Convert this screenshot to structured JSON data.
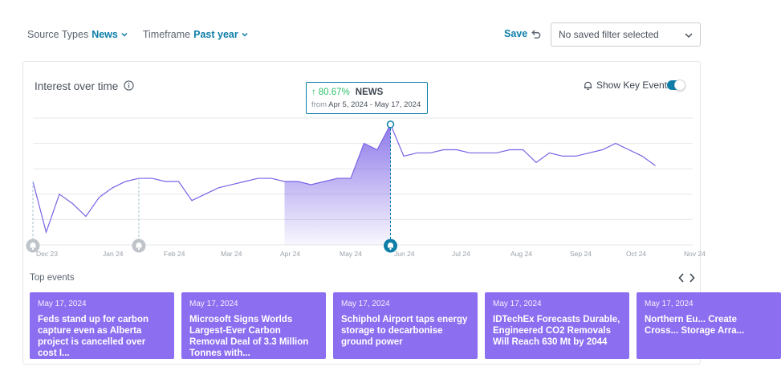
{
  "filters": {
    "source_types": {
      "label": "Source Types",
      "value": "News"
    },
    "timeframe": {
      "label": "Timeframe",
      "value": "Past year"
    }
  },
  "toolbar": {
    "save_label": "Save"
  },
  "saved_filter": {
    "value": "No saved filter selected"
  },
  "card": {
    "title": "Interest over time",
    "key_events_label": "Show Key Events",
    "key_events_on": true
  },
  "tooltip": {
    "change": "80.67%",
    "source": "NEWS",
    "from_label": "from",
    "dates": "Apr 5, 2024 - May 17, 2024"
  },
  "top_events_label": "Top events",
  "events": [
    {
      "date": "May 17, 2024",
      "title": "Feds stand up for carbon capture even as Alberta project is cancelled over cost I..."
    },
    {
      "date": "May 17, 2024",
      "title": "Microsoft Signs Worlds Largest-Ever Carbon Removal Deal of 3.3 Million Tonnes with..."
    },
    {
      "date": "May 17, 2024",
      "title": "Schiphol Airport taps energy storage to decarbonise ground power"
    },
    {
      "date": "May 17, 2024",
      "title": "IDTechEx Forecasts Durable, Engineered CO2 Removals Will Reach 630 Mt by 2044"
    },
    {
      "date": "May 17, 2024",
      "title": "Northern Eu... Create Cross... Storage Arra..."
    }
  ],
  "colors": {
    "accent": "#0e7ea8",
    "series": "#7b62e6",
    "event_card": "#8c6ef0",
    "positive": "#2fbf6a"
  },
  "chart_data": {
    "type": "line",
    "x_tick_labels": [
      "Dec 23",
      "Jan 24",
      "Feb 24",
      "Mar 24",
      "Apr 24",
      "May 24",
      "Jun 24",
      "Jul 24",
      "Aug 24",
      "Sep 24",
      "Oct 24",
      "Nov 24"
    ],
    "values": [
      40,
      24,
      36,
      33,
      29,
      35,
      38,
      40,
      41,
      41,
      40,
      40,
      34,
      36,
      38,
      39,
      40,
      41,
      41,
      40,
      40,
      39,
      40,
      41,
      41,
      52,
      50,
      58,
      48,
      49,
      49,
      50,
      50,
      49,
      49,
      49,
      50,
      50,
      46,
      49,
      48,
      48,
      49,
      50,
      52,
      50,
      48,
      45
    ],
    "y_min": 20,
    "y_max": 60,
    "grid": true,
    "highlight_range": [
      "Apr 5, 2024",
      "May 17, 2024"
    ],
    "highlight_index": 27,
    "key_event_indices": [
      0,
      8,
      27
    ]
  }
}
